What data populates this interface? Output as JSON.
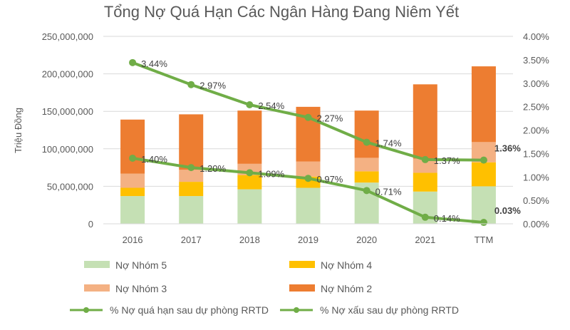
{
  "chart_data": {
    "type": "bar",
    "stacked": true,
    "title": "Tổng Nợ Quá Hạn Các Ngân Hàng Đang Niêm Yết",
    "ylabel": "Triệu Đồng",
    "xlabel": "",
    "categories": [
      "2016",
      "2017",
      "2018",
      "2019",
      "2020",
      "2021",
      "TTM"
    ],
    "ylim": [
      0,
      250000000
    ],
    "y_ticks": [
      "0",
      "50,000,000",
      "100,000,000",
      "150,000,000",
      "200,000,000",
      "250,000,000"
    ],
    "y2lim": [
      0,
      4
    ],
    "y2_ticks": [
      "0.00%",
      "0.50%",
      "1.00%",
      "1.50%",
      "2.00%",
      "2.50%",
      "3.00%",
      "3.50%",
      "4.00%"
    ],
    "grid": true,
    "legend_position": "bottom",
    "series": [
      {
        "name": "Nợ Nhóm 5",
        "kind": "bar",
        "color": "#c5e0b4",
        "values": [
          37000000,
          37000000,
          46000000,
          48000000,
          55000000,
          43000000,
          50000000
        ]
      },
      {
        "name": "Nợ Nhóm 4",
        "kind": "bar",
        "color": "#ffc000",
        "values": [
          11000000,
          19000000,
          19000000,
          15000000,
          15000000,
          25000000,
          32000000
        ]
      },
      {
        "name": "Nợ Nhóm 3",
        "kind": "bar",
        "color": "#f4b183",
        "values": [
          19000000,
          16000000,
          15000000,
          20000000,
          18000000,
          19000000,
          27000000
        ]
      },
      {
        "name": "Nợ Nhóm 2",
        "kind": "bar",
        "color": "#ed7d31",
        "values": [
          72000000,
          74000000,
          71000000,
          73000000,
          63000000,
          99000000,
          101000000
        ]
      },
      {
        "name": "% Nợ quá hạn sau dự phòng RRTD",
        "kind": "line",
        "axis": "right",
        "color": "#70ad47",
        "values": [
          3.44,
          2.97,
          2.54,
          2.27,
          1.74,
          1.37,
          1.36
        ],
        "labels": [
          "3.44%",
          "2.97%",
          "2.54%",
          "2.27%",
          "1.74%",
          "1.37%",
          "1.36%"
        ]
      },
      {
        "name": "% Nợ xấu sau dự phòng RRTD",
        "kind": "line",
        "axis": "right",
        "color": "#70ad47",
        "values": [
          1.4,
          1.2,
          1.09,
          0.97,
          0.71,
          0.14,
          0.03
        ],
        "labels": [
          "1.40%",
          "1.20%",
          "1.09%",
          "0.97%",
          "0.71%",
          "0.14%",
          "0.03%"
        ]
      }
    ]
  }
}
